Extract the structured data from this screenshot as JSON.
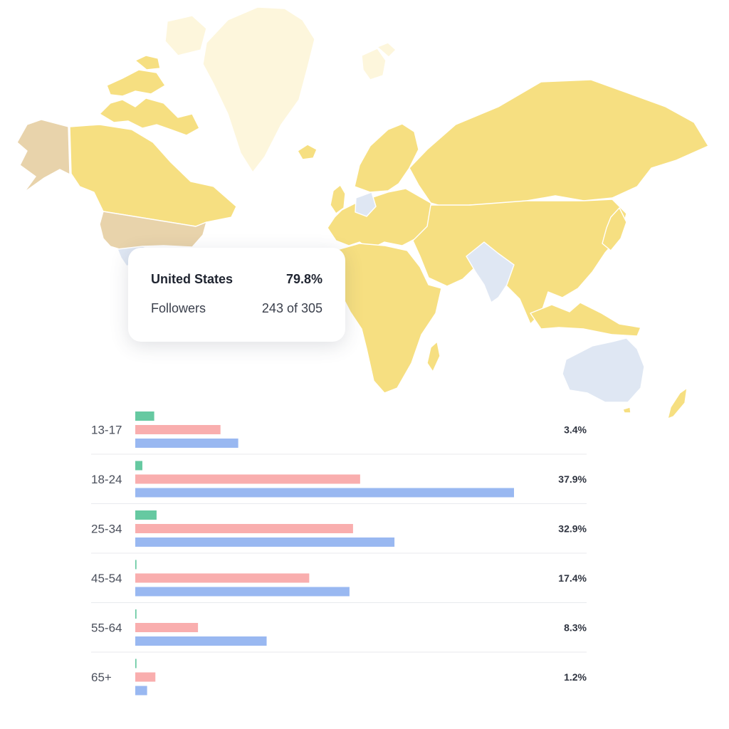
{
  "map": {
    "colors": {
      "default": "#f6df81",
      "faint": "#fdf6dc",
      "highlight": "#e8d3ab",
      "low": "#dfe7f3"
    },
    "regions": [
      {
        "name": "alaska",
        "shade": "highlight"
      },
      {
        "name": "canada",
        "shade": "default"
      },
      {
        "name": "canada-arctic-islands",
        "shade": "default"
      },
      {
        "name": "united-states",
        "shade": "highlight"
      },
      {
        "name": "mexico",
        "shade": "low"
      },
      {
        "name": "greenland",
        "shade": "faint"
      },
      {
        "name": "iceland",
        "shade": "default"
      },
      {
        "name": "svalbard",
        "shade": "faint"
      },
      {
        "name": "scandinavia",
        "shade": "default"
      },
      {
        "name": "uk",
        "shade": "default"
      },
      {
        "name": "europe",
        "shade": "default"
      },
      {
        "name": "central-europe",
        "shade": "low"
      },
      {
        "name": "russia",
        "shade": "default"
      },
      {
        "name": "asia",
        "shade": "default"
      },
      {
        "name": "india",
        "shade": "low"
      },
      {
        "name": "africa",
        "shade": "default"
      },
      {
        "name": "madagascar",
        "shade": "default"
      },
      {
        "name": "japan",
        "shade": "default"
      },
      {
        "name": "indonesia",
        "shade": "default"
      },
      {
        "name": "australia",
        "shade": "low"
      },
      {
        "name": "new-zealand",
        "shade": "default"
      }
    ]
  },
  "tooltip": {
    "country": "United States",
    "share": "79.8%",
    "metric_label": "Followers",
    "metric_value": "243 of 305"
  },
  "chart_data": {
    "type": "bar",
    "orientation": "horizontal",
    "categories": [
      "13-17",
      "18-24",
      "25-34",
      "45-54",
      "55-64",
      "65+"
    ],
    "totals": [
      "3.4%",
      "37.9%",
      "32.9%",
      "17.4%",
      "8.3%",
      "1.2%"
    ],
    "series": [
      {
        "color": "#66c9a1",
        "values": [
          1.6,
          0.6,
          1.8,
          0.1,
          0.1,
          0.1
        ]
      },
      {
        "color": "#f9aeae",
        "values": [
          7.2,
          19.0,
          18.4,
          14.7,
          5.3,
          1.7
        ]
      },
      {
        "color": "#99b8f1",
        "values": [
          8.7,
          32.0,
          21.9,
          18.1,
          11.1,
          1.0
        ]
      }
    ],
    "xlim": [
      0,
      32
    ],
    "grid": false,
    "legend": "none"
  }
}
